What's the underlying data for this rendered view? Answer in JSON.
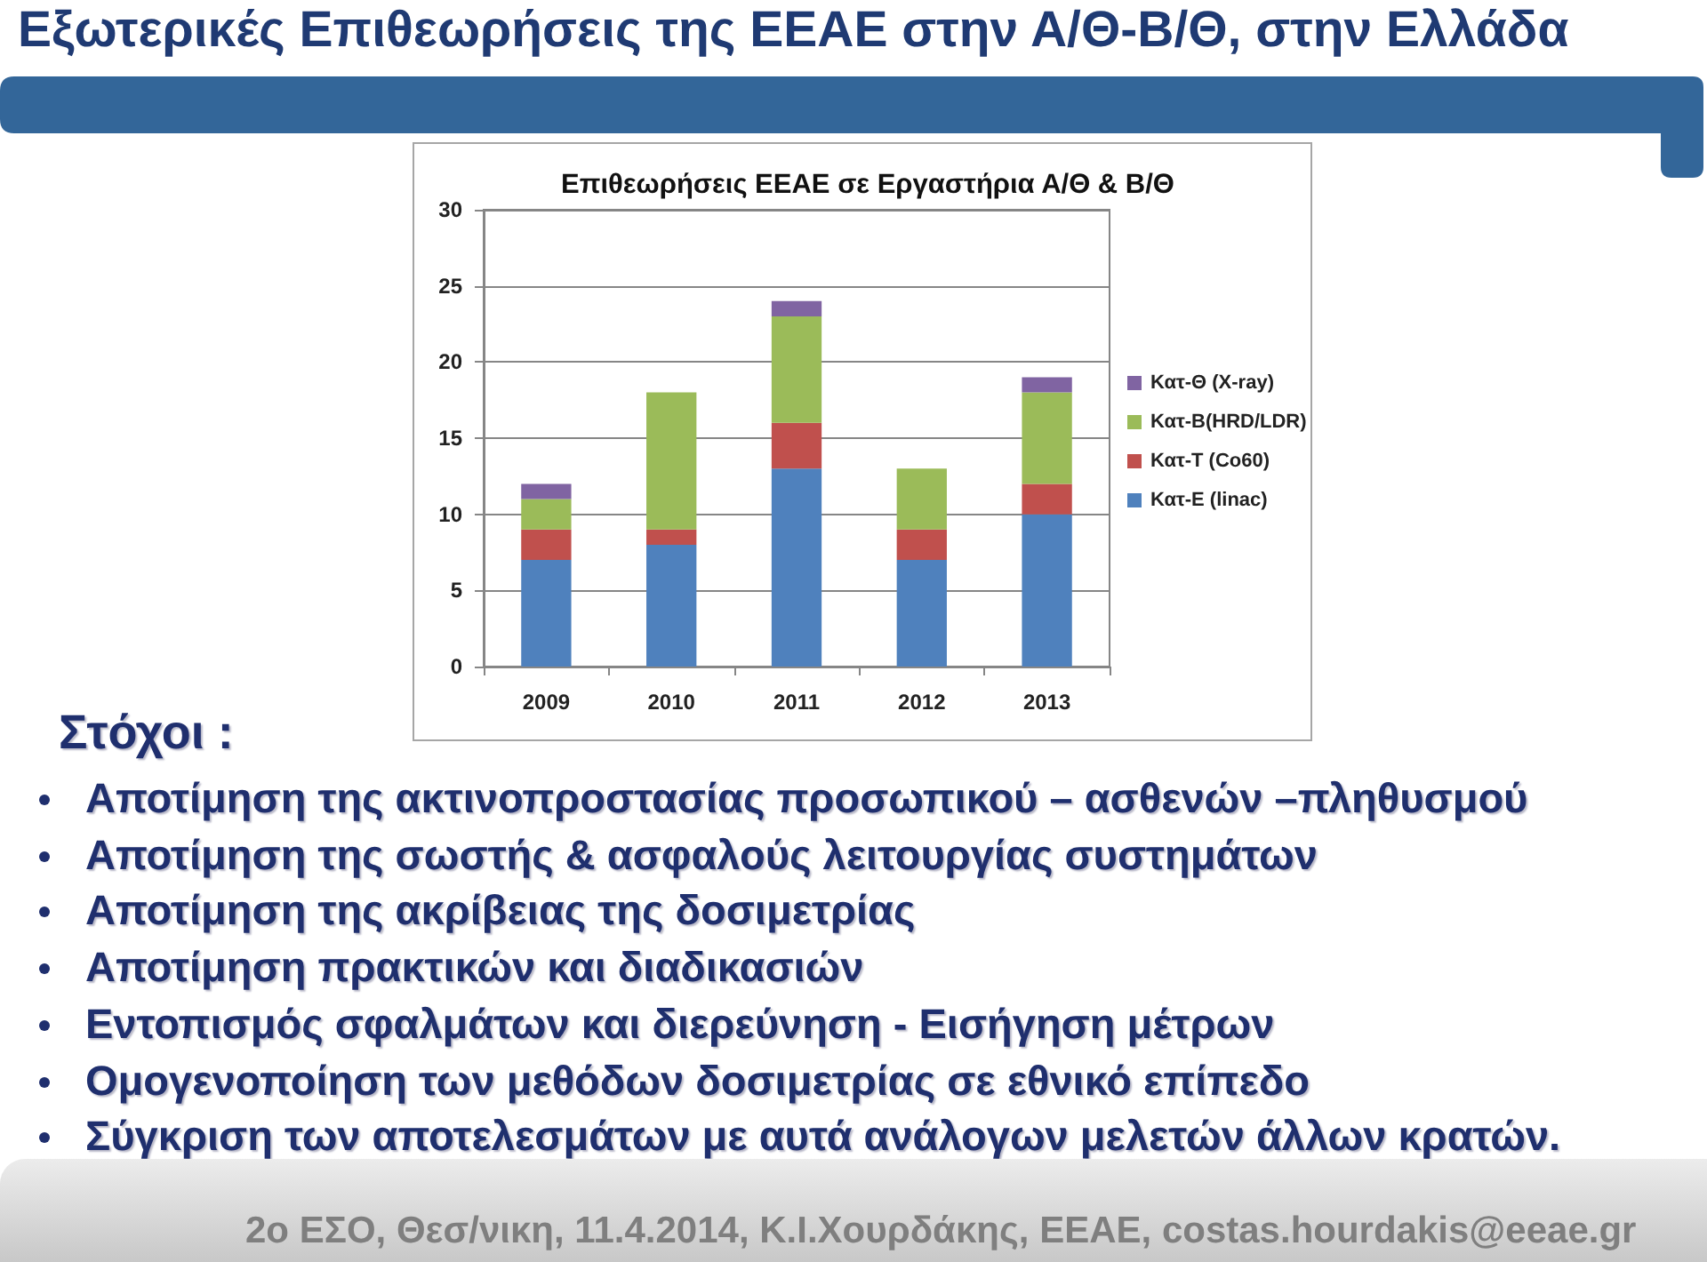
{
  "chart_data": {
    "type": "bar",
    "title": "Εξωτερικές Επιθεωρήσεις της ΕΕΑΕ στην Α/Θ-Β/Θ, στην Ελλάδα",
    "subtitle": "Επιθεωρήσεις ΕΕΑΕ σε Εργαστήρια Α/Θ & Β/Θ",
    "categories": [
      "2009",
      "2010",
      "2011",
      "2012",
      "2013"
    ],
    "series": [
      {
        "name": "Κατ-Ε (linac)",
        "color": "#4f81bd",
        "values": [
          7,
          8,
          13,
          7,
          10
        ]
      },
      {
        "name": "Κατ-Τ (Co60)",
        "color": "#c0504d",
        "values": [
          2,
          1,
          3,
          2,
          2
        ]
      },
      {
        "name": "Κατ-Β(HRD/LDR)",
        "color": "#9bbb59",
        "values": [
          2,
          9,
          7,
          4,
          6
        ]
      },
      {
        "name": "Κατ-Θ (X-ray)",
        "color": "#8064a2",
        "values": [
          1,
          null,
          1,
          null,
          1
        ]
      }
    ],
    "stacked": true,
    "ylim": [
      0,
      30
    ],
    "yticks": [
      0,
      5,
      10,
      15,
      20,
      25,
      30
    ],
    "grid": "y",
    "legend": "right",
    "annotations": [
      "Στόχοι :",
      "Αποτίμηση της ακτινοπροστασίας προσωπικού – ασθενών –πληθυσμού",
      "Αποτίμηση της σωστής & ασφαλούς λειτουργίας συστημάτων",
      "Αποτίμηση της ακρίβειας της δοσιμετρίας",
      "Αποτίμηση πρακτικών και διαδικασιών",
      "Εντοπισμός σφαλμάτων και διερεύνηση - Εισήγηση μέτρων",
      "Ομογενοποίηση των μεθόδων δοσιμετρίας σε εθνικό επίπεδο",
      "Σύγκριση των αποτελεσμάτων με αυτά ανάλογων μελετών άλλων κρατών.",
      "2ο ΕΣΟ, Θεσ/νικη, 11.4.2014, Κ.Ι.Χουρδάκης, ΕΕΑΕ, costas.hourdakis@eeae.gr"
    ]
  }
}
